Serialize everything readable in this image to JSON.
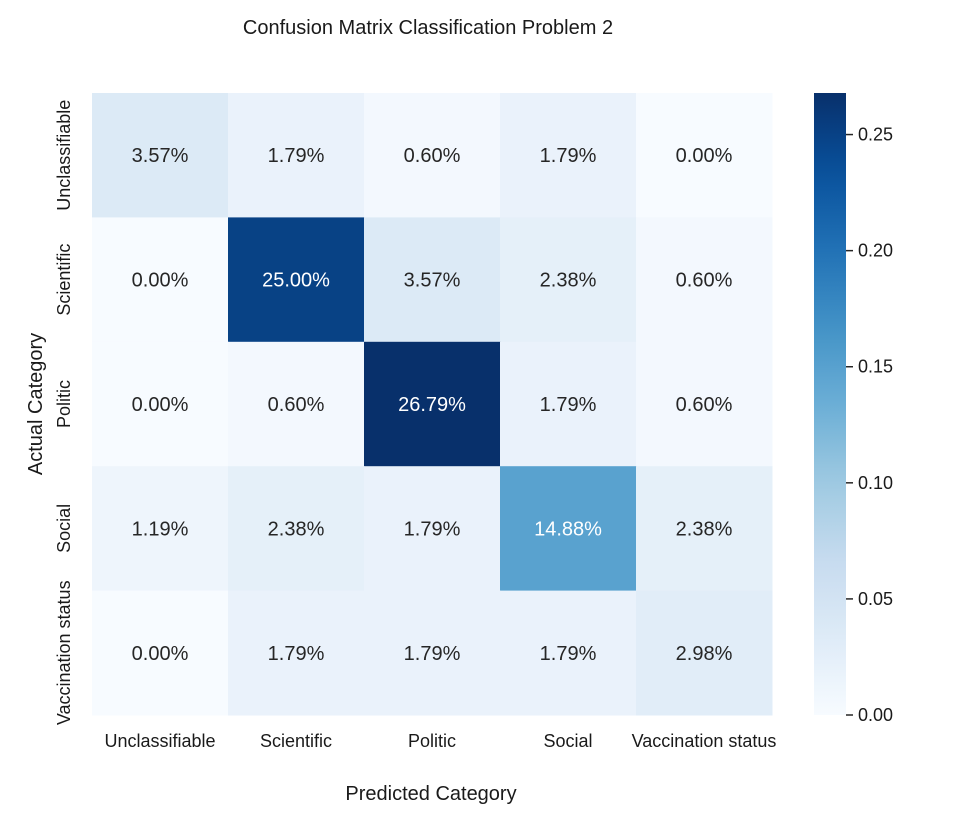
{
  "chart_data": {
    "type": "heatmap",
    "title": "Confusion Matrix Classification Problem 2",
    "xlabel": "Predicted Category",
    "ylabel": "Actual Category",
    "x_categories": [
      "Unclassifiable",
      "Scientific",
      "Politic",
      "Social",
      "Vaccination status"
    ],
    "y_categories": [
      "Unclassifiable",
      "Scientific",
      "Politic",
      "Social",
      "Vaccination status"
    ],
    "values": [
      [
        0.0357,
        0.0179,
        0.006,
        0.0179,
        0.0
      ],
      [
        0.0,
        0.25,
        0.0357,
        0.0238,
        0.006
      ],
      [
        0.0,
        0.006,
        0.2679,
        0.0179,
        0.006
      ],
      [
        0.0119,
        0.0238,
        0.0179,
        0.1488,
        0.0238
      ],
      [
        0.0,
        0.0179,
        0.0179,
        0.0179,
        0.0298
      ]
    ],
    "cell_labels": [
      [
        "3.57%",
        "1.79%",
        "0.60%",
        "1.79%",
        "0.00%"
      ],
      [
        "0.00%",
        "25.00%",
        "3.57%",
        "2.38%",
        "0.60%"
      ],
      [
        "0.00%",
        "0.60%",
        "26.79%",
        "1.79%",
        "0.60%"
      ],
      [
        "1.19%",
        "2.38%",
        "1.79%",
        "14.88%",
        "2.38%"
      ],
      [
        "0.00%",
        "1.79%",
        "1.79%",
        "1.79%",
        "2.98%"
      ]
    ],
    "colormap": "Blues",
    "colorbar": {
      "min": 0,
      "max": 0.2679,
      "ticks": [
        0.0,
        0.05,
        0.1,
        0.15,
        0.2,
        0.25
      ],
      "tick_labels": [
        "0.00",
        "0.05",
        "0.10",
        "0.15",
        "0.20",
        "0.25"
      ]
    },
    "grid": false
  }
}
